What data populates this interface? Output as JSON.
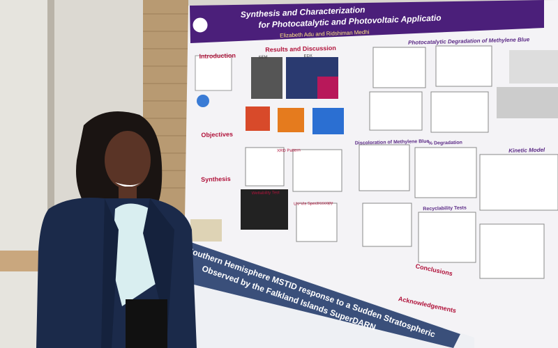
{
  "poster": {
    "title_line1": "Synthesis and Characterization",
    "title_line2": "for Photocatalytic and Photovoltaic Applicatio",
    "authors": "Elizabeth Adu and Ridshiman Medhi",
    "headings": [
      "Introduction",
      "Results and Discussion",
      "SEM",
      "EDX",
      "Objectives",
      "Synthesis",
      "XRD Pattern",
      "Wettability Test",
      "UV-Vis Spectroscopy",
      "Photocatalytic Degradation of Methylene Blue",
      "Discoloration of Methylene Blue",
      "% Degradation",
      "Kinetic Model",
      "Recyclability Tests",
      "Conclusions",
      "Acknowledgements"
    ]
  },
  "lower_poster": {
    "title_line1": "Southern Hemisphere MSTID response to a Sudden Stratospheric",
    "title_line2": "Observed by the Falkland Islands SuperDARN"
  }
}
